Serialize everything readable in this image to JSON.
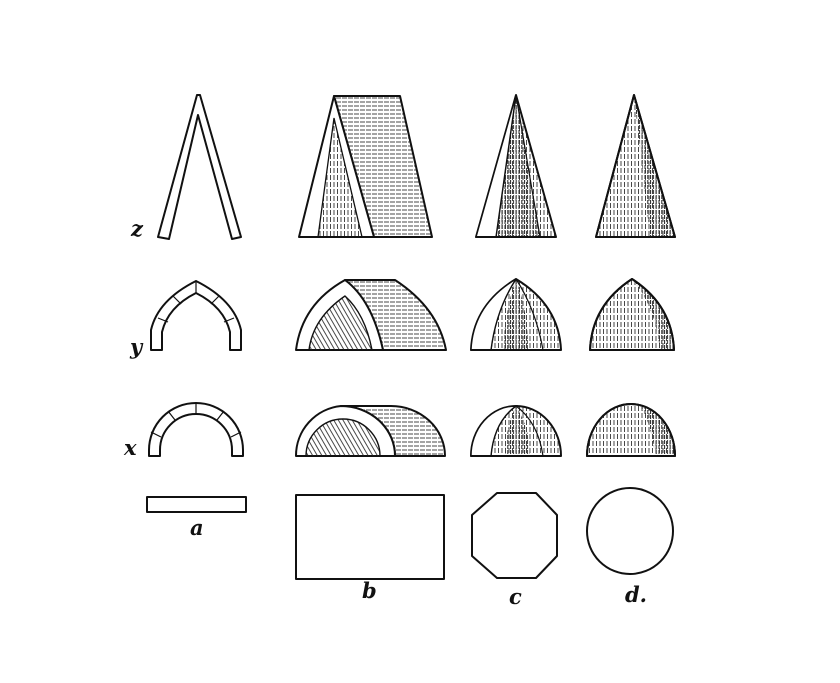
{
  "figure": {
    "row_labels": {
      "z": "z",
      "y": "y",
      "x": "x"
    },
    "column_labels": {
      "a": "a",
      "b": "b",
      "c": "c",
      "d": "d."
    }
  },
  "colors": {
    "ink": "#111111",
    "paper": "#ffffff"
  }
}
